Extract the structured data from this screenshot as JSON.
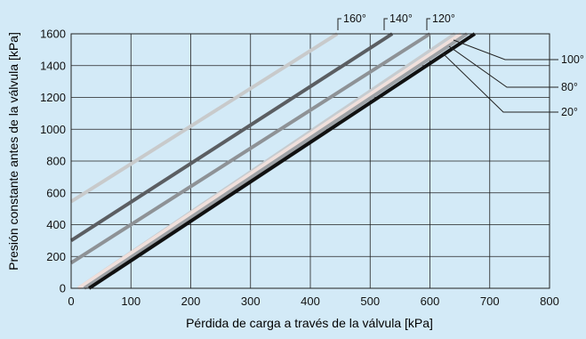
{
  "chart_data": {
    "type": "line",
    "title": "",
    "xlabel": "Pérdida de carga a través de la válvula [kPa]",
    "ylabel": "Presión constante antes de la válvula [kPa]",
    "xlim": [
      0,
      800
    ],
    "ylim": [
      0,
      1600
    ],
    "grid": true,
    "x_ticks": [
      "0",
      "100",
      "200",
      "300",
      "400",
      "500",
      "600",
      "700",
      "800"
    ],
    "y_ticks": [
      "0",
      "200",
      "400",
      "600",
      "800",
      "1000",
      "1200",
      "1400",
      "1600"
    ],
    "series": [
      {
        "name": "160°",
        "color": "#c8cacb",
        "x": [
          0,
          445
        ],
        "y": [
          545,
          1600
        ]
      },
      {
        "name": "140°",
        "color": "#5b5e62",
        "x": [
          0,
          537
        ],
        "y": [
          300,
          1600
        ]
      },
      {
        "name": "120°",
        "color": "#8e9296",
        "x": [
          0,
          600
        ],
        "y": [
          160,
          1600
        ]
      },
      {
        "name": "100°",
        "color": "#c6ccd0",
        "x": [
          12,
          642
        ],
        "y": [
          0,
          1600
        ]
      },
      {
        "name": "80°",
        "color": "#f0e0dc",
        "x": [
          12,
          652
        ],
        "y": [
          0,
          1600
        ]
      },
      {
        "name": "20°",
        "color": "#9ea2a6",
        "x": [
          22,
          662
        ],
        "y": [
          0,
          1600
        ]
      },
      {
        "name": "",
        "color": "#111111",
        "x": [
          30,
          675
        ],
        "y": [
          0,
          1600
        ]
      }
    ],
    "colors": {
      "background": "#d3eaf7",
      "grid": "#222222"
    }
  }
}
